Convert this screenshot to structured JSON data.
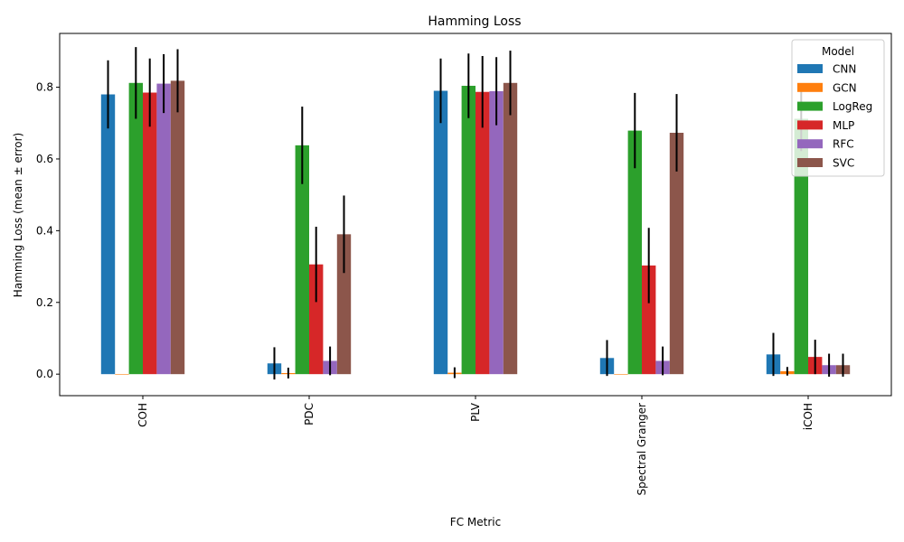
{
  "chart_data": {
    "type": "bar",
    "title": "Hamming Loss",
    "xlabel": "FC Metric",
    "ylabel": "Hamming Loss (mean ± error)",
    "categories": [
      "COH",
      "PDC",
      "PLV",
      "Spectral Granger",
      "iCOH"
    ],
    "ylim": [
      -0.06,
      0.95
    ],
    "yticks": [
      0.0,
      0.2,
      0.4,
      0.6,
      0.8
    ],
    "ytick_labels": [
      "0.0",
      "0.2",
      "0.4",
      "0.6",
      "0.8"
    ],
    "grid": false,
    "legend": {
      "title": "Model",
      "placement": "top-right"
    },
    "series": [
      {
        "name": "CNN",
        "color": "#1f77b4",
        "values": [
          0.78,
          0.03,
          0.79,
          0.045,
          0.055
        ],
        "errors": [
          0.095,
          0.045,
          0.09,
          0.05,
          0.06
        ]
      },
      {
        "name": "GCN",
        "color": "#ff7f0e",
        "values": [
          0.0,
          0.003,
          0.004,
          0.0,
          0.008
        ],
        "errors": [
          0.0,
          0.015,
          0.015,
          0.0,
          0.012
        ]
      },
      {
        "name": "LogReg",
        "color": "#2ca02c",
        "values": [
          0.812,
          0.638,
          0.804,
          0.679,
          0.712
        ],
        "errors": [
          0.1,
          0.108,
          0.09,
          0.105,
          0.09
        ]
      },
      {
        "name": "MLP",
        "color": "#d62728",
        "values": [
          0.785,
          0.306,
          0.787,
          0.303,
          0.048
        ],
        "errors": [
          0.095,
          0.105,
          0.1,
          0.105,
          0.048
        ]
      },
      {
        "name": "RFC",
        "color": "#9467bd",
        "values": [
          0.81,
          0.037,
          0.789,
          0.037,
          0.025
        ],
        "errors": [
          0.082,
          0.04,
          0.095,
          0.04,
          0.032
        ]
      },
      {
        "name": "SVC",
        "color": "#8c564b",
        "values": [
          0.818,
          0.39,
          0.812,
          0.673,
          0.025
        ],
        "errors": [
          0.088,
          0.108,
          0.09,
          0.108,
          0.032
        ]
      }
    ]
  }
}
